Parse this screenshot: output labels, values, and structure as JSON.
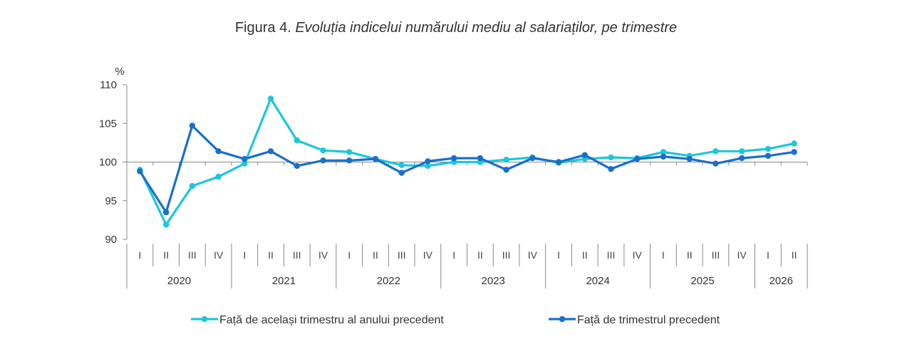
{
  "figure": {
    "prefix": "Figura 4.",
    "title": "Evoluția indicelui numărului mediu al salariaților, pe trimestre"
  },
  "chart_data": {
    "type": "line",
    "ylabel": "%",
    "ylim": [
      90,
      110
    ],
    "yticks": [
      90,
      95,
      100,
      105,
      110
    ],
    "baseline": 100,
    "quarter_labels": [
      "I",
      "II",
      "III",
      "IV",
      "I",
      "II",
      "III",
      "IV",
      "I",
      "II",
      "III",
      "IV",
      "I",
      "II",
      "III",
      "IV",
      "I",
      "II",
      "III",
      "IV",
      "I",
      "II",
      "III",
      "IV",
      "I",
      "II"
    ],
    "years": [
      {
        "label": "2020",
        "quarters": 4
      },
      {
        "label": "2021",
        "quarters": 4
      },
      {
        "label": "2022",
        "quarters": 4
      },
      {
        "label": "2023",
        "quarters": 4
      },
      {
        "label": "2024",
        "quarters": 4
      },
      {
        "label": "2025",
        "quarters": 4
      },
      {
        "label": "2026",
        "quarters": 2
      }
    ],
    "series": [
      {
        "name": "Față de același trimestru al anului precedent",
        "color": "#1CC7D9",
        "values": [
          99.0,
          91.9,
          96.9,
          98.1,
          99.8,
          108.2,
          102.8,
          101.5,
          101.3,
          100.4,
          99.6,
          99.5,
          100.0,
          100.0,
          100.3,
          100.6,
          99.9,
          100.4,
          100.6,
          100.5,
          101.3,
          100.8,
          101.4,
          101.4,
          101.7,
          102.4
        ]
      },
      {
        "name": "Față de trimestrul precedent",
        "color": "#1A6FC9",
        "values": [
          98.8,
          93.5,
          104.7,
          101.4,
          100.4,
          101.4,
          99.5,
          100.2,
          100.2,
          100.4,
          98.6,
          100.1,
          100.5,
          100.5,
          99.0,
          100.5,
          100.0,
          100.9,
          99.1,
          100.4,
          100.7,
          100.4,
          99.8,
          100.5,
          100.8,
          101.3
        ]
      }
    ],
    "legend_position": "bottom"
  }
}
